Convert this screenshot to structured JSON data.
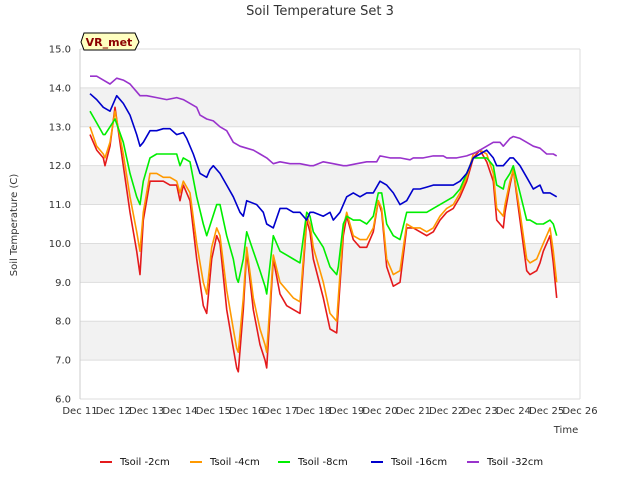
{
  "chart_data": {
    "type": "line",
    "title": "Soil Temperature Set 3",
    "xlabel": "Time",
    "ylabel": "Soil Temperature (C)",
    "badge": "VR_met",
    "ylim": [
      6.0,
      15.0
    ],
    "xlim": [
      11,
      26
    ],
    "y_ticks": [
      "6.0",
      "7.0",
      "8.0",
      "9.0",
      "10.0",
      "11.0",
      "12.0",
      "13.0",
      "14.0",
      "15.0"
    ],
    "x_ticks": [
      "Dec 11",
      "Dec 12",
      "Dec 13",
      "Dec 14",
      "Dec 15",
      "Dec 16",
      "Dec 17",
      "Dec 18",
      "Dec 19",
      "Dec 20",
      "Dec 21",
      "Dec 22",
      "Dec 23",
      "Dec 24",
      "Dec 25",
      "Dec 26"
    ],
    "grid": true,
    "legend_position": "bottom",
    "series": [
      {
        "name": "Tsoil -2cm",
        "color": "#e41a1c",
        "x": [
          11.3,
          11.5,
          11.7,
          11.75,
          11.9,
          12.05,
          12.3,
          12.5,
          12.7,
          12.8,
          12.9,
          13.1,
          13.3,
          13.5,
          13.7,
          13.9,
          14.0,
          14.1,
          14.3,
          14.5,
          14.7,
          14.8,
          14.95,
          15.1,
          15.2,
          15.4,
          15.6,
          15.7,
          15.75,
          15.9,
          16.0,
          16.2,
          16.4,
          16.55,
          16.6,
          16.8,
          17.0,
          17.2,
          17.4,
          17.6,
          17.8,
          17.9,
          18.0,
          18.3,
          18.5,
          18.7,
          18.75,
          18.9,
          19.0,
          19.2,
          19.4,
          19.6,
          19.8,
          19.95,
          20.05,
          20.2,
          20.4,
          20.6,
          20.8,
          21.0,
          21.2,
          21.4,
          21.6,
          21.8,
          22.0,
          22.2,
          22.4,
          22.6,
          22.8,
          23.0,
          23.2,
          23.4,
          23.5,
          23.7,
          23.75,
          23.9,
          24.0,
          24.2,
          24.4,
          24.5,
          24.7,
          24.8,
          24.9,
          25.1,
          25.2,
          25.3
        ],
        "y": [
          12.8,
          12.4,
          12.2,
          12.0,
          12.5,
          13.5,
          12.0,
          10.8,
          9.8,
          9.2,
          10.6,
          11.6,
          11.6,
          11.6,
          11.5,
          11.5,
          11.1,
          11.5,
          11.1,
          9.6,
          8.4,
          8.2,
          9.6,
          10.2,
          10.0,
          8.3,
          7.3,
          6.8,
          6.7,
          8.3,
          9.8,
          8.3,
          7.4,
          7.0,
          6.8,
          9.6,
          8.7,
          8.4,
          8.3,
          8.2,
          10.6,
          10.3,
          9.6,
          8.6,
          7.8,
          7.7,
          8.3,
          10.2,
          10.7,
          10.1,
          9.9,
          9.9,
          10.3,
          11.1,
          10.8,
          9.4,
          8.9,
          9.0,
          10.4,
          10.4,
          10.3,
          10.2,
          10.3,
          10.6,
          10.8,
          10.9,
          11.2,
          11.6,
          12.2,
          12.4,
          12.1,
          11.6,
          10.6,
          10.4,
          10.8,
          11.5,
          11.9,
          10.6,
          9.3,
          9.2,
          9.3,
          9.5,
          9.8,
          10.2,
          9.5,
          8.6
        ]
      },
      {
        "name": "Tsoil -4cm",
        "color": "#ff9900",
        "x": [
          11.3,
          11.5,
          11.7,
          11.75,
          11.9,
          12.05,
          12.3,
          12.5,
          12.7,
          12.8,
          12.9,
          13.1,
          13.3,
          13.5,
          13.7,
          13.9,
          14.0,
          14.1,
          14.3,
          14.5,
          14.7,
          14.8,
          14.95,
          15.1,
          15.2,
          15.4,
          15.6,
          15.7,
          15.75,
          15.9,
          16.0,
          16.2,
          16.4,
          16.55,
          16.6,
          16.8,
          17.0,
          17.2,
          17.4,
          17.6,
          17.8,
          17.9,
          18.0,
          18.3,
          18.5,
          18.7,
          18.75,
          18.9,
          19.0,
          19.2,
          19.4,
          19.6,
          19.8,
          19.95,
          20.05,
          20.2,
          20.4,
          20.6,
          20.8,
          21.0,
          21.2,
          21.4,
          21.6,
          21.8,
          22.0,
          22.2,
          22.4,
          22.6,
          22.8,
          23.0,
          23.2,
          23.4,
          23.5,
          23.7,
          23.75,
          23.9,
          24.0,
          24.2,
          24.4,
          24.5,
          24.7,
          24.8,
          24.9,
          25.1,
          25.2,
          25.3
        ],
        "y": [
          13.0,
          12.5,
          12.3,
          12.2,
          12.6,
          13.4,
          12.3,
          11.2,
          10.3,
          9.8,
          10.8,
          11.8,
          11.8,
          11.7,
          11.7,
          11.6,
          11.3,
          11.6,
          11.3,
          10.0,
          9.0,
          8.7,
          9.9,
          10.4,
          10.2,
          8.8,
          7.8,
          7.3,
          7.2,
          8.6,
          9.9,
          8.6,
          7.8,
          7.4,
          7.2,
          9.7,
          9.0,
          8.8,
          8.6,
          8.5,
          10.7,
          10.5,
          9.9,
          9.0,
          8.2,
          8.0,
          8.6,
          10.4,
          10.8,
          10.2,
          10.1,
          10.1,
          10.4,
          11.1,
          10.9,
          9.6,
          9.2,
          9.3,
          10.5,
          10.4,
          10.4,
          10.3,
          10.4,
          10.7,
          10.9,
          11.0,
          11.3,
          11.7,
          12.3,
          12.4,
          12.3,
          11.8,
          10.9,
          10.7,
          11.0,
          11.6,
          11.9,
          10.8,
          9.6,
          9.5,
          9.6,
          9.8,
          10.0,
          10.4,
          9.8,
          9.0
        ]
      },
      {
        "name": "Tsoil -8cm",
        "color": "#00ee00",
        "x": [
          11.3,
          11.5,
          11.7,
          11.75,
          11.9,
          12.05,
          12.3,
          12.5,
          12.7,
          12.8,
          12.9,
          13.1,
          13.3,
          13.5,
          13.7,
          13.9,
          14.0,
          14.1,
          14.3,
          14.5,
          14.7,
          14.8,
          14.95,
          15.1,
          15.2,
          15.4,
          15.6,
          15.7,
          15.75,
          15.9,
          16.0,
          16.2,
          16.4,
          16.55,
          16.6,
          16.8,
          17.0,
          17.2,
          17.4,
          17.6,
          17.8,
          17.9,
          18.0,
          18.3,
          18.5,
          18.7,
          18.75,
          18.9,
          19.0,
          19.2,
          19.4,
          19.6,
          19.8,
          19.95,
          20.05,
          20.2,
          20.4,
          20.6,
          20.8,
          21.0,
          21.2,
          21.4,
          21.6,
          21.8,
          22.0,
          22.2,
          22.4,
          22.6,
          22.8,
          23.0,
          23.2,
          23.4,
          23.5,
          23.7,
          23.75,
          23.9,
          24.0,
          24.2,
          24.4,
          24.5,
          24.7,
          24.8,
          24.9,
          25.1,
          25.2,
          25.3
        ],
        "y": [
          13.4,
          13.1,
          12.8,
          12.8,
          13.0,
          13.2,
          12.6,
          11.8,
          11.2,
          11.0,
          11.6,
          12.2,
          12.3,
          12.3,
          12.3,
          12.3,
          12.0,
          12.2,
          12.1,
          11.2,
          10.5,
          10.2,
          10.6,
          11.0,
          11.0,
          10.2,
          9.6,
          9.1,
          9.0,
          9.6,
          10.3,
          9.8,
          9.3,
          8.9,
          8.7,
          10.2,
          9.8,
          9.7,
          9.6,
          9.5,
          10.8,
          10.7,
          10.3,
          9.9,
          9.4,
          9.2,
          9.4,
          10.5,
          10.7,
          10.6,
          10.6,
          10.5,
          10.7,
          11.3,
          11.3,
          10.5,
          10.2,
          10.1,
          10.8,
          10.8,
          10.8,
          10.8,
          10.9,
          11.0,
          11.1,
          11.2,
          11.4,
          11.8,
          12.2,
          12.2,
          12.2,
          12.0,
          11.5,
          11.4,
          11.6,
          11.8,
          12.0,
          11.3,
          10.6,
          10.6,
          10.5,
          10.5,
          10.5,
          10.6,
          10.5,
          10.2
        ]
      },
      {
        "name": "Tsoil -16cm",
        "color": "#0000cc",
        "x": [
          11.3,
          11.5,
          11.7,
          11.9,
          12.1,
          12.3,
          12.5,
          12.7,
          12.8,
          12.9,
          13.1,
          13.3,
          13.5,
          13.7,
          13.9,
          14.1,
          14.2,
          14.4,
          14.6,
          14.8,
          14.9,
          15.0,
          15.2,
          15.4,
          15.6,
          15.8,
          15.9,
          16.0,
          16.3,
          16.5,
          16.6,
          16.8,
          17.0,
          17.2,
          17.4,
          17.6,
          17.8,
          17.9,
          18.0,
          18.3,
          18.5,
          18.6,
          18.8,
          19.0,
          19.2,
          19.4,
          19.6,
          19.8,
          20.0,
          20.2,
          20.4,
          20.6,
          20.8,
          21.0,
          21.2,
          21.4,
          21.6,
          21.8,
          22.0,
          22.2,
          22.4,
          22.6,
          22.8,
          23.0,
          23.2,
          23.4,
          23.5,
          23.7,
          23.9,
          24.0,
          24.2,
          24.4,
          24.6,
          24.8,
          24.9,
          25.1,
          25.3
        ],
        "y": [
          13.85,
          13.7,
          13.5,
          13.4,
          13.8,
          13.6,
          13.3,
          12.8,
          12.5,
          12.6,
          12.9,
          12.9,
          12.95,
          12.95,
          12.8,
          12.85,
          12.7,
          12.3,
          11.8,
          11.7,
          11.9,
          12.0,
          11.8,
          11.5,
          11.2,
          10.8,
          10.7,
          11.1,
          11.0,
          10.8,
          10.5,
          10.4,
          10.9,
          10.9,
          10.8,
          10.8,
          10.6,
          10.8,
          10.8,
          10.7,
          10.8,
          10.6,
          10.8,
          11.2,
          11.3,
          11.2,
          11.3,
          11.3,
          11.6,
          11.5,
          11.3,
          11.0,
          11.1,
          11.4,
          11.4,
          11.45,
          11.5,
          11.5,
          11.5,
          11.5,
          11.6,
          11.8,
          12.2,
          12.3,
          12.4,
          12.2,
          12.0,
          12.0,
          12.2,
          12.2,
          12.0,
          11.7,
          11.4,
          11.5,
          11.3,
          11.3,
          11.2
        ]
      },
      {
        "name": "Tsoil -32cm",
        "color": "#9933cc",
        "x": [
          11.3,
          11.5,
          11.7,
          11.9,
          12.1,
          12.3,
          12.5,
          12.7,
          12.8,
          13.0,
          13.3,
          13.6,
          13.9,
          14.1,
          14.3,
          14.5,
          14.6,
          14.8,
          15.0,
          15.2,
          15.4,
          15.6,
          15.8,
          16.0,
          16.2,
          16.4,
          16.6,
          16.8,
          17.0,
          17.3,
          17.6,
          17.9,
          18.0,
          18.3,
          18.6,
          18.9,
          19.0,
          19.3,
          19.6,
          19.9,
          20.0,
          20.3,
          20.6,
          20.9,
          21.0,
          21.3,
          21.6,
          21.9,
          22.0,
          22.3,
          22.6,
          22.9,
          23.0,
          23.2,
          23.4,
          23.6,
          23.7,
          23.9,
          24.0,
          24.2,
          24.4,
          24.6,
          24.8,
          25.0,
          25.2,
          25.3
        ],
        "y": [
          14.3,
          14.3,
          14.2,
          14.1,
          14.25,
          14.2,
          14.1,
          13.9,
          13.8,
          13.8,
          13.75,
          13.7,
          13.75,
          13.7,
          13.6,
          13.5,
          13.3,
          13.2,
          13.15,
          13.0,
          12.9,
          12.6,
          12.5,
          12.45,
          12.4,
          12.3,
          12.2,
          12.05,
          12.1,
          12.05,
          12.05,
          12.0,
          12.0,
          12.1,
          12.05,
          12.0,
          12.0,
          12.05,
          12.1,
          12.1,
          12.25,
          12.2,
          12.2,
          12.15,
          12.2,
          12.2,
          12.25,
          12.25,
          12.2,
          12.2,
          12.25,
          12.35,
          12.4,
          12.5,
          12.6,
          12.6,
          12.5,
          12.7,
          12.75,
          12.7,
          12.6,
          12.5,
          12.45,
          12.3,
          12.3,
          12.25
        ]
      }
    ]
  }
}
